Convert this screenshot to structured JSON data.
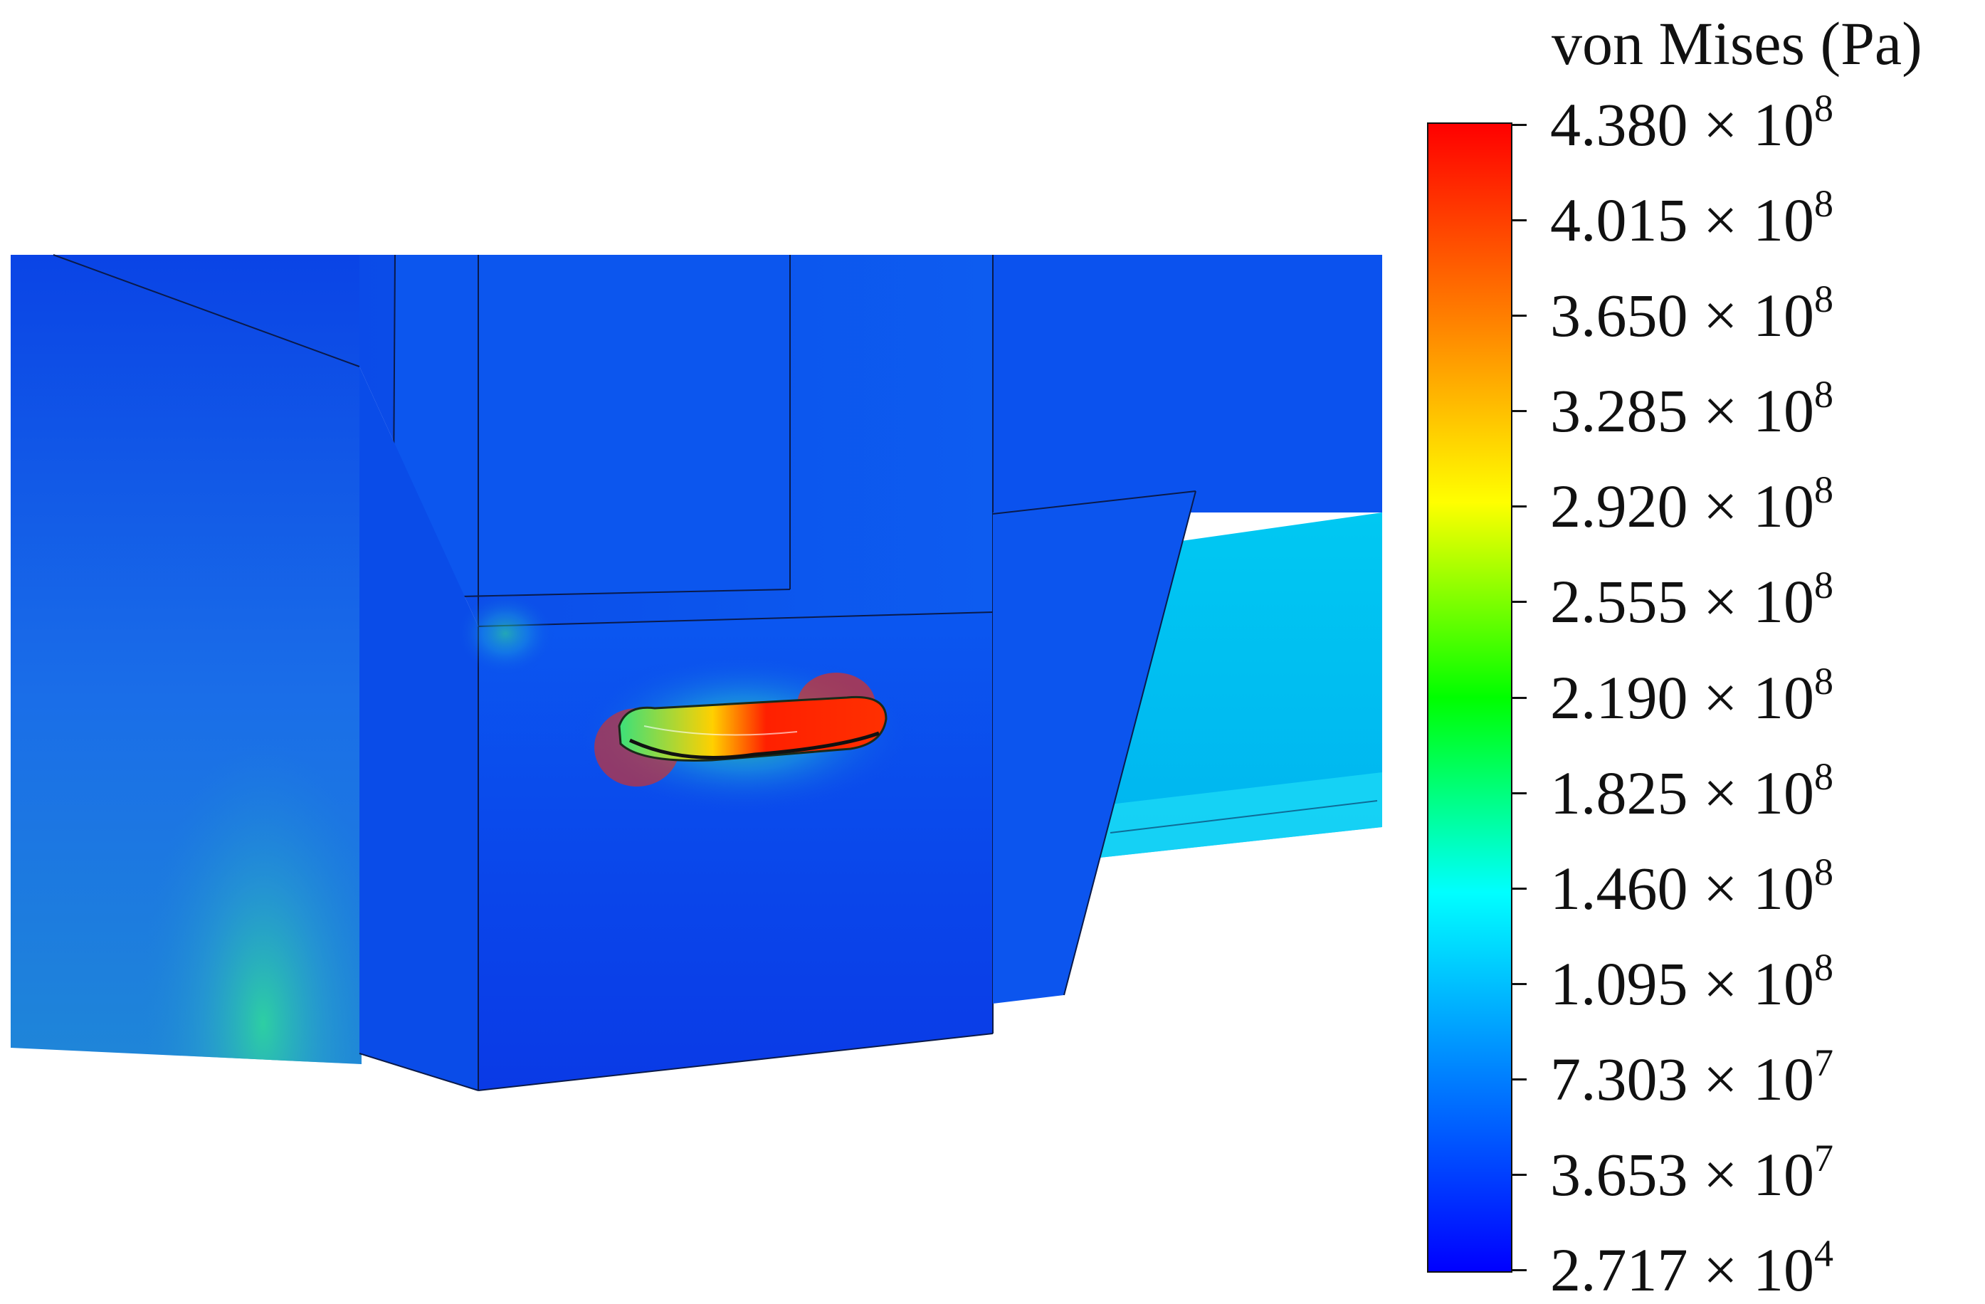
{
  "figure": {
    "quantity": "von Mises stress",
    "colormap": [
      "#0000ff",
      "#0080ff",
      "#00ffff",
      "#00ff00",
      "#ffff00",
      "#ff8000",
      "#ff0000"
    ]
  },
  "legend": {
    "title": "von Mises (Pa)",
    "ticks": [
      {
        "mantissa": "4.380",
        "times": "×",
        "base": "10",
        "exp": "8"
      },
      {
        "mantissa": "4.015",
        "times": "×",
        "base": "10",
        "exp": "8"
      },
      {
        "mantissa": "3.650",
        "times": "×",
        "base": "10",
        "exp": "8"
      },
      {
        "mantissa": "3.285",
        "times": "×",
        "base": "10",
        "exp": "8"
      },
      {
        "mantissa": "2.920",
        "times": "×",
        "base": "10",
        "exp": "8"
      },
      {
        "mantissa": "2.555",
        "times": "×",
        "base": "10",
        "exp": "8"
      },
      {
        "mantissa": "2.190",
        "times": "×",
        "base": "10",
        "exp": "8"
      },
      {
        "mantissa": "1.825",
        "times": "×",
        "base": "10",
        "exp": "8"
      },
      {
        "mantissa": "1.460",
        "times": "×",
        "base": "10",
        "exp": "8"
      },
      {
        "mantissa": "1.095",
        "times": "×",
        "base": "10",
        "exp": "8"
      },
      {
        "mantissa": "7.303",
        "times": "×",
        "base": "10",
        "exp": "7"
      },
      {
        "mantissa": "3.653",
        "times": "×",
        "base": "10",
        "exp": "7"
      },
      {
        "mantissa": "2.717",
        "times": "×",
        "base": "10",
        "exp": "4"
      }
    ]
  }
}
